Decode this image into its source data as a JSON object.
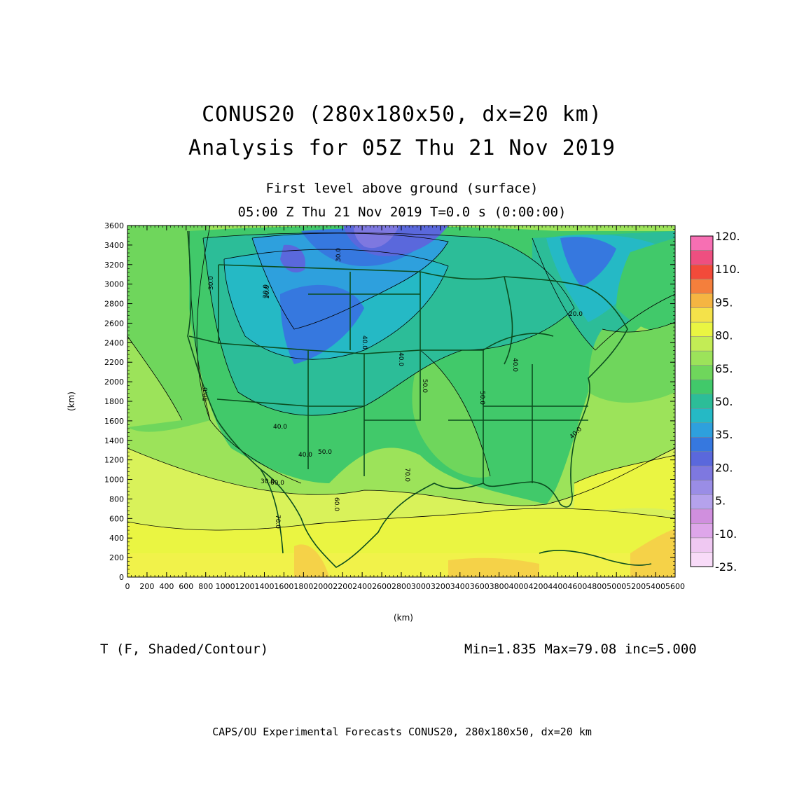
{
  "title": {
    "line1": "CONUS20 (280x180x50, dx=20 km)",
    "line2": "Analysis for 05Z Thu 21 Nov 2019"
  },
  "subtitle": {
    "level": "First level above ground (surface)",
    "time": "05:00 Z Thu 21 Nov 2019   T=0.0 s (0:00:00)"
  },
  "axes": {
    "xlabel": "(km)",
    "ylabel": "(km)",
    "xticks": [
      "0",
      "200",
      "400",
      "600",
      "800",
      "1000",
      "1200",
      "1400",
      "1600",
      "1800",
      "2000",
      "2200",
      "2400",
      "2600",
      "2800",
      "3000",
      "3200",
      "3400",
      "3600",
      "3800",
      "4000",
      "4200",
      "4400",
      "4600",
      "4800",
      "5000",
      "5200",
      "5400",
      "5600"
    ],
    "yticks": [
      "0",
      "200",
      "400",
      "600",
      "800",
      "1000",
      "1200",
      "1400",
      "1600",
      "1800",
      "2000",
      "2200",
      "2400",
      "2600",
      "2800",
      "3000",
      "3200",
      "3400",
      "3600"
    ],
    "xlim": [
      0,
      5600
    ],
    "ylim": [
      0,
      3600
    ]
  },
  "colorbar": {
    "labels": [
      "120.",
      "110.",
      "95.",
      "80.",
      "65.",
      "50.",
      "35.",
      "20.",
      "5.",
      "-10.",
      "-25."
    ],
    "colors": [
      "#f76fb3",
      "#ee4f80",
      "#f24a3a",
      "#f47f3c",
      "#f5b542",
      "#f4e24a",
      "#eaf542",
      "#c3ec55",
      "#9ce35a",
      "#6fd65c",
      "#41c96a",
      "#2cbd98",
      "#25b9c5",
      "#2ea0dd",
      "#3678df",
      "#5a68dc",
      "#7e78e0",
      "#9a8de6",
      "#b5a2ec",
      "#d08fde",
      "#dea6ea",
      "#efc8f2",
      "#f8dbf8"
    ]
  },
  "field_label": "T (F, Shaded/Contour)",
  "stats": "Min=1.835 Max=79.08 inc=5.000",
  "credit": "CAPS/OU Experimental Forecasts  CONUS20, 280x180x50, dx=20 km",
  "contour_labels": [
    "30.0",
    "30.0",
    "20.0",
    "30.0",
    "40.0",
    "40.0",
    "10.0",
    "50.0",
    "40.0",
    "50.0",
    "60.0",
    "70.0",
    "60.0",
    "70.0",
    "50.0",
    "50.0",
    "40.0",
    "40.0",
    "40.0",
    "30.0"
  ]
}
